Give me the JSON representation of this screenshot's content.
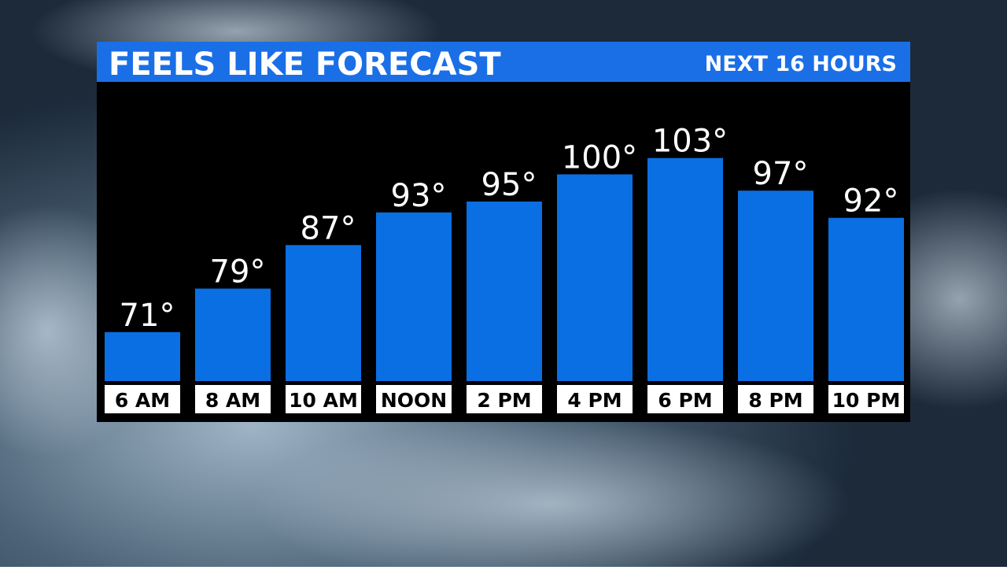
{
  "chart_data": {
    "type": "bar",
    "title": "FEELS LIKE FORECAST",
    "subtitle": "NEXT 16 HOURS",
    "categories": [
      "6 AM",
      "8 AM",
      "10 AM",
      "NOON",
      "2 PM",
      "4 PM",
      "6 PM",
      "8 PM",
      "10 PM"
    ],
    "values": [
      71,
      79,
      87,
      93,
      95,
      100,
      103,
      97,
      92
    ],
    "value_labels": [
      "71°",
      "79°",
      "87°",
      "93°",
      "95°",
      "100°",
      "103°",
      "97°",
      "92°"
    ],
    "color": "#0a6fe3",
    "ylim": [
      62,
      117
    ]
  }
}
